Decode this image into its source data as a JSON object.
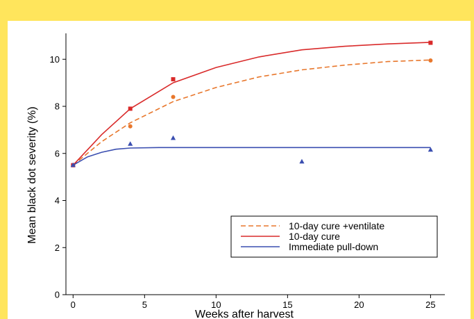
{
  "colors": {
    "frame": "#ffe55c",
    "ventilate": "#e8772c",
    "cure": "#d92a2a",
    "pulldown": "#3a4eb0"
  },
  "chart_data": {
    "type": "scatter",
    "xlabel": "Weeks after harvest",
    "ylabel": "Mean black dot severity (%)",
    "xlim": [
      -0.5,
      26
    ],
    "ylim": [
      0,
      11.1
    ],
    "xticks": [
      0,
      5,
      10,
      15,
      20,
      25
    ],
    "yticks": [
      0,
      2,
      4,
      6,
      8,
      10
    ],
    "grid": false,
    "legend_position": "bottom-right",
    "series": [
      {
        "name": "10-day cure +ventilate",
        "color": "#e8772c",
        "line_style": "dashed",
        "marker": "circle",
        "points": [
          {
            "x": 0,
            "y": 5.5
          },
          {
            "x": 4,
            "y": 7.15
          },
          {
            "x": 7,
            "y": 8.4
          },
          {
            "x": 25,
            "y": 9.95
          }
        ],
        "fit_curve": [
          [
            0,
            5.5
          ],
          [
            2,
            6.5
          ],
          [
            4,
            7.3
          ],
          [
            7,
            8.2
          ],
          [
            10,
            8.8
          ],
          [
            13,
            9.25
          ],
          [
            16,
            9.55
          ],
          [
            19,
            9.75
          ],
          [
            22,
            9.9
          ],
          [
            25,
            9.97
          ]
        ]
      },
      {
        "name": "10-day cure",
        "color": "#d92a2a",
        "line_style": "solid",
        "marker": "square",
        "points": [
          {
            "x": 0,
            "y": 5.5
          },
          {
            "x": 4,
            "y": 7.9
          },
          {
            "x": 7,
            "y": 9.15
          },
          {
            "x": 25,
            "y": 10.7
          }
        ],
        "fit_curve": [
          [
            0,
            5.5
          ],
          [
            2,
            6.8
          ],
          [
            4,
            7.9
          ],
          [
            7,
            9.0
          ],
          [
            10,
            9.65
          ],
          [
            13,
            10.1
          ],
          [
            16,
            10.4
          ],
          [
            19,
            10.55
          ],
          [
            22,
            10.65
          ],
          [
            25,
            10.72
          ]
        ]
      },
      {
        "name": "Immediate pull-down",
        "color": "#3a4eb0",
        "line_style": "solid",
        "marker": "triangle",
        "points": [
          {
            "x": 0,
            "y": 5.5
          },
          {
            "x": 4,
            "y": 6.4
          },
          {
            "x": 7,
            "y": 6.65
          },
          {
            "x": 16,
            "y": 5.65
          },
          {
            "x": 25,
            "y": 6.15
          }
        ],
        "fit_curve": [
          [
            0,
            5.5
          ],
          [
            1,
            5.85
          ],
          [
            2,
            6.05
          ],
          [
            3,
            6.18
          ],
          [
            4,
            6.23
          ],
          [
            6,
            6.25
          ],
          [
            25,
            6.25
          ]
        ]
      }
    ]
  }
}
